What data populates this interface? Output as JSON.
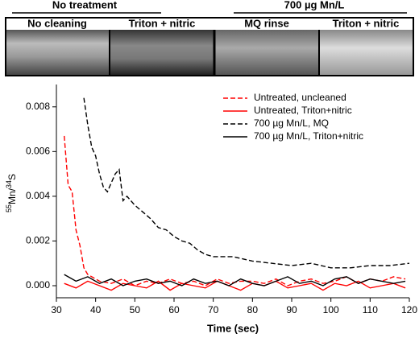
{
  "header": {
    "groups": [
      {
        "title": "No treatment",
        "panels": [
          "No cleaning",
          "Triton + nitric"
        ]
      },
      {
        "title": "700 µg Mn/L",
        "panels": [
          "MQ rinse",
          "Triton + nitric"
        ]
      }
    ]
  },
  "chart_data": {
    "type": "line",
    "x_label": "Time (sec)",
    "y_label": {
      "mass1": "55",
      "element1": "Mn/",
      "mass2": "34",
      "element2": "S"
    },
    "xlim": [
      30,
      120
    ],
    "xticks": [
      30,
      40,
      50,
      60,
      70,
      80,
      90,
      100,
      110,
      120
    ],
    "ylim": [
      -0.00054,
      0.009
    ],
    "yticks": [
      {
        "value": 0,
        "label": "0.000"
      },
      {
        "value": 0.002,
        "label": "0.002"
      },
      {
        "value": 0.004,
        "label": "0.004"
      },
      {
        "value": 0.006,
        "label": "0.006"
      },
      {
        "value": 0.008,
        "label": "0.008"
      }
    ],
    "legend": "upper right",
    "series": [
      {
        "name": "Untreated, uncleaned",
        "color": "#ff0000",
        "dash": true,
        "x": [
          32,
          33,
          34,
          35,
          36,
          37,
          38,
          39,
          41,
          44,
          47,
          50,
          53,
          56,
          59,
          62,
          65,
          68,
          71,
          74,
          77,
          80,
          83,
          86,
          89,
          92,
          95,
          98,
          101,
          104,
          107,
          110,
          113,
          116,
          119
        ],
        "values": [
          0.0067,
          0.0045,
          0.0042,
          0.0025,
          0.0018,
          0.0008,
          0.0005,
          0.0004,
          0.0002,
          0.0001,
          0.0003,
          0.0,
          0.0002,
          0.0001,
          0.0003,
          0.0001,
          0.0002,
          0.0,
          0.0003,
          0.0001,
          0.0002,
          0.0002,
          0.0001,
          0.0003,
          0.0,
          0.0002,
          0.0003,
          0.0001,
          0.0002,
          0.0004,
          0.0001,
          0.0003,
          0.0002,
          0.0004,
          0.0003
        ]
      },
      {
        "name": "Untreated, Triton+nitric",
        "color": "#ff0000",
        "dash": false,
        "x": [
          32,
          35,
          38,
          41,
          44,
          47,
          50,
          53,
          56,
          59,
          62,
          65,
          68,
          71,
          74,
          77,
          80,
          83,
          86,
          89,
          92,
          95,
          98,
          101,
          104,
          107,
          110,
          113,
          116,
          119
        ],
        "values": [
          0.0001,
          -0.0001,
          0.0002,
          0.0,
          -0.0002,
          0.0001,
          0.0,
          -0.0001,
          0.0002,
          -0.0002,
          0.0001,
          0.0,
          -0.0001,
          0.0002,
          0.0,
          -0.0002,
          0.0001,
          0.0,
          0.0002,
          -0.0001,
          0.0,
          0.0001,
          -0.0002,
          0.0001,
          0.0,
          0.0002,
          -0.0001,
          0.0,
          0.0001,
          -0.0001
        ]
      },
      {
        "name": "700 µg Mn/L, MQ",
        "color": "#000000",
        "dash": true,
        "x": [
          37,
          38,
          39,
          40,
          41,
          42,
          43,
          44,
          45,
          46,
          47,
          48,
          50,
          52,
          54,
          56,
          58,
          60,
          62,
          64,
          66,
          68,
          70,
          75,
          80,
          85,
          90,
          95,
          100,
          105,
          110,
          115,
          120
        ],
        "values": [
          0.0084,
          0.0072,
          0.0062,
          0.0058,
          0.005,
          0.0044,
          0.0042,
          0.0046,
          0.005,
          0.0052,
          0.0038,
          0.004,
          0.0036,
          0.0033,
          0.003,
          0.0026,
          0.0025,
          0.0022,
          0.002,
          0.0019,
          0.0016,
          0.0014,
          0.0013,
          0.0013,
          0.0011,
          0.001,
          0.0009,
          0.001,
          0.0008,
          0.0008,
          0.0009,
          0.0009,
          0.001
        ]
      },
      {
        "name": "700 µg Mn/L, Triton+nitric",
        "color": "#000000",
        "dash": false,
        "x": [
          32,
          35,
          38,
          41,
          44,
          47,
          50,
          53,
          56,
          59,
          62,
          65,
          68,
          71,
          74,
          77,
          80,
          83,
          86,
          89,
          92,
          95,
          98,
          101,
          104,
          107,
          110,
          113,
          116,
          119
        ],
        "values": [
          0.0005,
          0.0002,
          0.0004,
          0.0001,
          0.0003,
          0.0,
          0.0002,
          0.0003,
          0.0001,
          0.0002,
          0.0,
          0.0003,
          0.0001,
          0.0002,
          0.0,
          0.0003,
          0.0001,
          0.0,
          0.0002,
          0.0004,
          0.0001,
          0.0002,
          0.0,
          0.0003,
          0.0004,
          0.0001,
          0.0003,
          0.0002,
          0.0001,
          0.0002
        ]
      }
    ]
  }
}
